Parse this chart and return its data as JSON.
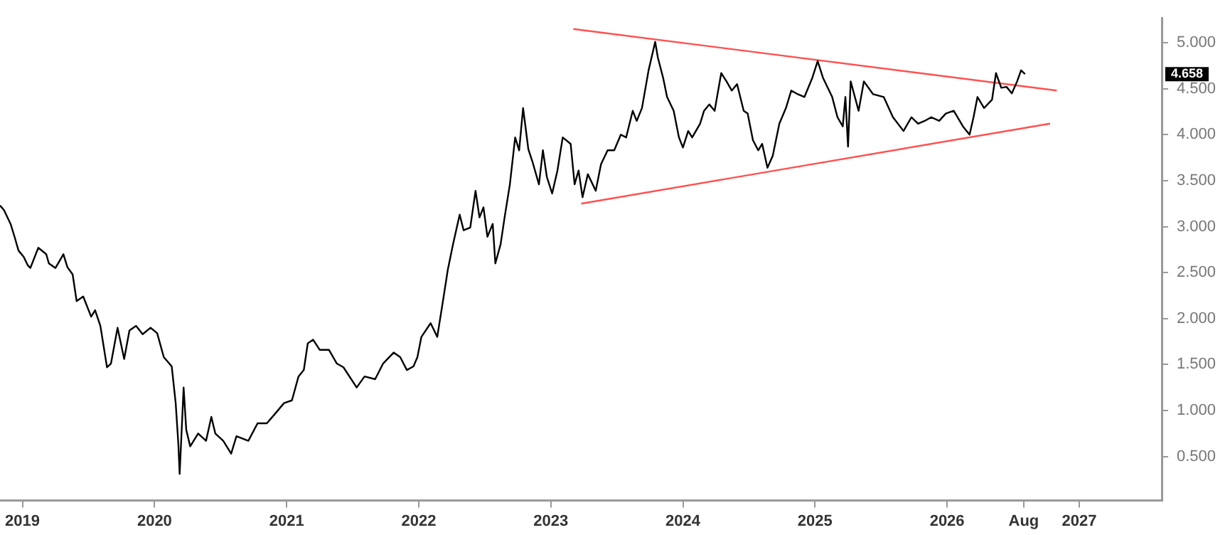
{
  "chart_data": {
    "type": "line",
    "xlim": [
      2018.83,
      2027.63
    ],
    "xticks": [
      2019,
      2020,
      2021,
      2022,
      2023,
      2024,
      2025,
      {
        "value": 2026.58,
        "label": "Aug"
      },
      2026,
      2027
    ],
    "ylim": [
      0.02,
      5.27
    ],
    "yticks": [
      {
        "value": 0.5,
        "label": "0.500"
      },
      {
        "value": 1,
        "label": "1.000"
      },
      {
        "value": 1.5,
        "label": "1.500"
      },
      {
        "value": 2,
        "label": "2.000"
      },
      {
        "value": 2.5,
        "label": "2.500"
      },
      {
        "value": 3,
        "label": "3.000"
      },
      {
        "value": 3.5,
        "label": "3.500"
      },
      {
        "value": 4,
        "label": "4.000"
      },
      {
        "value": 4.5,
        "label": "4.500"
      },
      {
        "value": 5,
        "label": "5.000"
      }
    ],
    "grid": false,
    "legend": false,
    "marker": "none",
    "line_style": "solid",
    "annotations": [
      {
        "text": "4.658",
        "y": 4.658
      }
    ],
    "series": [
      {
        "color": "#000000",
        "x": [
          2018.83,
          2018.86,
          2018.91,
          2018.94,
          2018.97,
          2019.01,
          2019.04,
          2019.06,
          2019.12,
          2019.18,
          2019.2,
          2019.25,
          2019.31,
          2019.34,
          2019.38,
          2019.41,
          2019.46,
          2019.52,
          2019.55,
          2019.59,
          2019.64,
          2019.67,
          2019.72,
          2019.77,
          2019.81,
          2019.86,
          2019.91,
          2019.97,
          2020.02,
          2020.07,
          2020.13,
          2020.16,
          2020.18,
          2020.19,
          2020.21,
          2020.22,
          2020.24,
          2020.27,
          2020.33,
          2020.39,
          2020.43,
          2020.46,
          2020.52,
          2020.58,
          2020.62,
          2020.71,
          2020.78,
          2020.85,
          2020.91,
          2020.98,
          2021.04,
          2021.09,
          2021.13,
          2021.16,
          2021.2,
          2021.25,
          2021.32,
          2021.38,
          2021.43,
          2021.53,
          2021.59,
          2021.67,
          2021.73,
          2021.81,
          2021.86,
          2021.91,
          2021.96,
          2021.99,
          2022.02,
          2022.09,
          2022.14,
          2022.18,
          2022.22,
          2022.26,
          2022.31,
          2022.34,
          2022.39,
          2022.43,
          2022.46,
          2022.49,
          2022.52,
          2022.56,
          2022.58,
          2022.62,
          2022.65,
          2022.69,
          2022.73,
          2022.76,
          2022.79,
          2022.83,
          2022.86,
          2022.91,
          2022.94,
          2022.97,
          2023.01,
          2023.05,
          2023.09,
          2023.15,
          2023.18,
          2023.21,
          2023.24,
          2023.28,
          2023.34,
          2023.38,
          2023.43,
          2023.48,
          2023.53,
          2023.57,
          2023.62,
          2023.65,
          2023.69,
          2023.74,
          2023.79,
          2023.81,
          2023.85,
          2023.88,
          2023.93,
          2023.97,
          2024.0,
          2024.04,
          2024.07,
          2024.13,
          2024.16,
          2024.2,
          2024.24,
          2024.29,
          2024.33,
          2024.37,
          2024.41,
          2024.46,
          2024.49,
          2024.53,
          2024.57,
          2024.6,
          2024.64,
          2024.68,
          2024.73,
          2024.78,
          2024.82,
          2024.87,
          2024.92,
          2024.98,
          2025.02,
          2025.06,
          2025.13,
          2025.17,
          2025.21,
          2025.23,
          2025.25,
          2025.27,
          2025.33,
          2025.37,
          2025.44,
          2025.52,
          2025.59,
          2025.67,
          2025.73,
          2025.78,
          2025.83,
          2025.88,
          2025.94,
          2025.99,
          2026.05,
          2026.12,
          2026.17,
          2026.2,
          2026.23,
          2026.28,
          2026.34,
          2026.37,
          2026.41,
          2026.45,
          2026.49,
          2026.53,
          2026.56,
          2026.59
        ],
        "values": [
          3.23,
          3.18,
          3.03,
          2.89,
          2.74,
          2.67,
          2.58,
          2.55,
          2.77,
          2.7,
          2.6,
          2.55,
          2.7,
          2.56,
          2.48,
          2.19,
          2.24,
          2.02,
          2.09,
          1.92,
          1.47,
          1.51,
          1.9,
          1.56,
          1.87,
          1.92,
          1.83,
          1.9,
          1.84,
          1.58,
          1.48,
          1.08,
          0.64,
          0.31,
          0.93,
          1.25,
          0.79,
          0.61,
          0.75,
          0.67,
          0.93,
          0.75,
          0.67,
          0.53,
          0.72,
          0.67,
          0.86,
          0.86,
          0.96,
          1.08,
          1.11,
          1.37,
          1.44,
          1.73,
          1.77,
          1.66,
          1.66,
          1.51,
          1.47,
          1.25,
          1.37,
          1.34,
          1.51,
          1.63,
          1.58,
          1.44,
          1.48,
          1.58,
          1.8,
          1.95,
          1.8,
          2.16,
          2.53,
          2.81,
          3.13,
          2.96,
          2.99,
          3.39,
          3.1,
          3.21,
          2.89,
          3.03,
          2.6,
          2.81,
          3.1,
          3.46,
          3.97,
          3.83,
          4.29,
          3.84,
          3.71,
          3.46,
          3.83,
          3.54,
          3.36,
          3.61,
          3.97,
          3.9,
          3.46,
          3.61,
          3.32,
          3.57,
          3.39,
          3.68,
          3.83,
          3.83,
          4.0,
          3.97,
          4.26,
          4.15,
          4.29,
          4.7,
          5.01,
          4.84,
          4.62,
          4.41,
          4.26,
          3.97,
          3.86,
          4.04,
          3.97,
          4.12,
          4.26,
          4.33,
          4.26,
          4.67,
          4.58,
          4.48,
          4.55,
          4.26,
          4.23,
          3.94,
          3.83,
          3.9,
          3.64,
          3.77,
          4.12,
          4.29,
          4.48,
          4.44,
          4.41,
          4.62,
          4.8,
          4.62,
          4.41,
          4.19,
          4.09,
          4.41,
          3.87,
          4.58,
          4.26,
          4.58,
          4.44,
          4.41,
          4.19,
          4.04,
          4.19,
          4.12,
          4.15,
          4.19,
          4.15,
          4.23,
          4.26,
          4.09,
          4.0,
          4.19,
          4.41,
          4.29,
          4.38,
          4.67,
          4.51,
          4.52,
          4.45,
          4.58,
          4.7,
          4.66
        ]
      },
      {
        "color": "#ff5050",
        "x": [
          2023.17,
          2026.83
        ],
        "values": [
          5.15,
          4.48
        ]
      },
      {
        "color": "#ff5050",
        "x": [
          2023.23,
          2026.78
        ],
        "values": [
          3.25,
          4.12
        ]
      }
    ]
  }
}
